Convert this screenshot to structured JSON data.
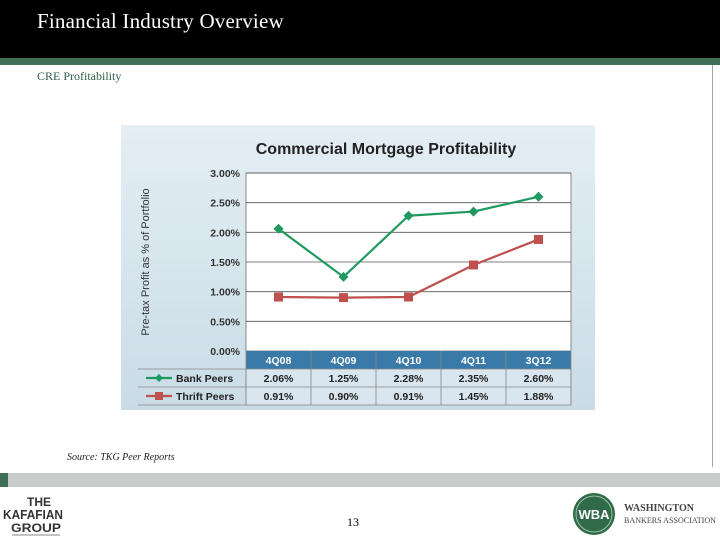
{
  "header": {
    "title": "Financial Industry Overview"
  },
  "section": {
    "subtitle": "CRE Profitability"
  },
  "source_note": "Source: TKG Peer Reports",
  "page_number": "13",
  "logos": {
    "kafafian": {
      "line1": "THE",
      "line2": "KAFAFIAN",
      "line3": "GROUP"
    },
    "wba": {
      "badge": "WBA",
      "name_line1": "WASHINGTON",
      "name_line2": "BANKERS ASSOCIATION"
    }
  },
  "colors": {
    "bank": "#1f9a5f",
    "thrift": "#c0504d",
    "header": "#000000",
    "accent": "#3f6f55"
  },
  "chart_data": {
    "type": "line",
    "title": "Commercial Mortgage Profitability",
    "ylabel": "Pre-tax Profit as % of Portfolio",
    "xlabel": "",
    "ylim": [
      0,
      3.0
    ],
    "yticks": [
      0,
      0.5,
      1.0,
      1.5,
      2.0,
      2.5,
      3.0
    ],
    "ytick_labels": [
      "0.00%",
      "0.50%",
      "1.00%",
      "1.50%",
      "2.00%",
      "2.50%",
      "3.00%"
    ],
    "categories": [
      "4Q08",
      "4Q09",
      "4Q10",
      "4Q11",
      "3Q12"
    ],
    "grid": true,
    "legend": "data-table",
    "series": [
      {
        "name": "Bank Peers",
        "values": [
          2.06,
          1.25,
          2.28,
          2.35,
          2.6
        ],
        "labels": [
          "2.06%",
          "1.25%",
          "2.28%",
          "2.35%",
          "2.60%"
        ],
        "color": "#1f9a5f",
        "marker": "diamond"
      },
      {
        "name": "Thrift Peers",
        "values": [
          0.91,
          0.9,
          0.91,
          1.45,
          1.88
        ],
        "labels": [
          "0.91%",
          "0.90%",
          "0.91%",
          "1.45%",
          "1.88%"
        ],
        "color": "#c0504d",
        "marker": "square"
      }
    ]
  }
}
